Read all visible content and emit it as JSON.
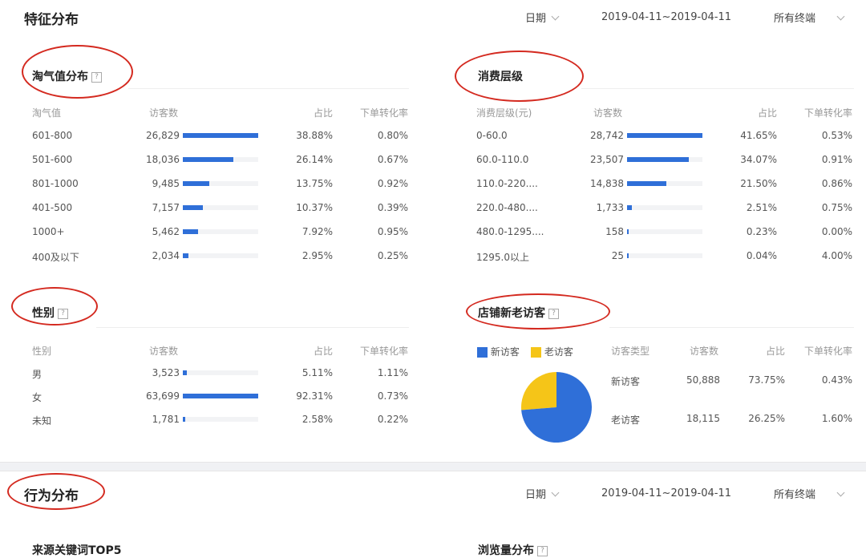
{
  "colors": {
    "accent": "#2f6fd8",
    "pie_new": "#2f6fd8",
    "pie_old": "#f5c518",
    "annotation": "#d42a20"
  },
  "feature_section": {
    "title": "特征分布",
    "date_label": "日期",
    "date_range": "2019-04-11~2019-04-11",
    "terminal_label": "所有终端"
  },
  "taoqi": {
    "title": "淘气值分布",
    "headers": [
      "淘气值",
      "访客数",
      "占比",
      "下单转化率"
    ],
    "rows": [
      {
        "label": "601-800",
        "visitors": "26,829",
        "share": "38.88%",
        "conv": "0.80%",
        "ratio": 1.0
      },
      {
        "label": "501-600",
        "visitors": "18,036",
        "share": "26.14%",
        "conv": "0.67%",
        "ratio": 0.672
      },
      {
        "label": "801-1000",
        "visitors": "9,485",
        "share": "13.75%",
        "conv": "0.92%",
        "ratio": 0.354
      },
      {
        "label": "401-500",
        "visitors": "7,157",
        "share": "10.37%",
        "conv": "0.39%",
        "ratio": 0.267
      },
      {
        "label": "1000+",
        "visitors": "5,462",
        "share": "7.92%",
        "conv": "0.95%",
        "ratio": 0.204
      },
      {
        "label": "400及以下",
        "visitors": "2,034",
        "share": "2.95%",
        "conv": "0.25%",
        "ratio": 0.076
      }
    ]
  },
  "consumption": {
    "title": "消费层级",
    "headers": [
      "消费层级(元)",
      "访客数",
      "占比",
      "下单转化率"
    ],
    "rows": [
      {
        "label": "0-60.0",
        "visitors": "28,742",
        "share": "41.65%",
        "conv": "0.53%",
        "ratio": 1.0
      },
      {
        "label": "60.0-110.0",
        "visitors": "23,507",
        "share": "34.07%",
        "conv": "0.91%",
        "ratio": 0.818
      },
      {
        "label": "110.0-220....",
        "visitors": "14,838",
        "share": "21.50%",
        "conv": "0.86%",
        "ratio": 0.516
      },
      {
        "label": "220.0-480....",
        "visitors": "1,733",
        "share": "2.51%",
        "conv": "0.75%",
        "ratio": 0.06
      },
      {
        "label": "480.0-1295....",
        "visitors": "158",
        "share": "0.23%",
        "conv": "0.00%",
        "ratio": 0.0055
      },
      {
        "label": "1295.0以上",
        "visitors": "25",
        "share": "0.04%",
        "conv": "4.00%",
        "ratio": 0.0009
      }
    ]
  },
  "gender": {
    "title": "性别",
    "headers": [
      "性别",
      "访客数",
      "占比",
      "下单转化率"
    ],
    "rows": [
      {
        "label": "男",
        "visitors": "3,523",
        "share": "5.11%",
        "conv": "1.11%",
        "ratio": 0.055
      },
      {
        "label": "女",
        "visitors": "63,699",
        "share": "92.31%",
        "conv": "0.73%",
        "ratio": 1.0
      },
      {
        "label": "未知",
        "visitors": "1,781",
        "share": "2.58%",
        "conv": "0.22%",
        "ratio": 0.028
      }
    ]
  },
  "new_old": {
    "title": "店铺新老访客",
    "legend_new": "新访客",
    "legend_old": "老访客",
    "headers": [
      "访客类型",
      "访客数",
      "占比",
      "下单转化率"
    ],
    "rows": [
      {
        "label": "新访客",
        "visitors": "50,888",
        "share": "73.75%",
        "conv": "0.43%"
      },
      {
        "label": "老访客",
        "visitors": "18,115",
        "share": "26.25%",
        "conv": "1.60%"
      }
    ],
    "pie_share_new": 0.7375
  },
  "behavior_section": {
    "title": "行为分布",
    "date_label": "日期",
    "date_range": "2019-04-11~2019-04-11",
    "terminal_label": "所有终端",
    "left_subtitle": "来源关键词TOP5",
    "right_subtitle": "浏览量分布"
  }
}
